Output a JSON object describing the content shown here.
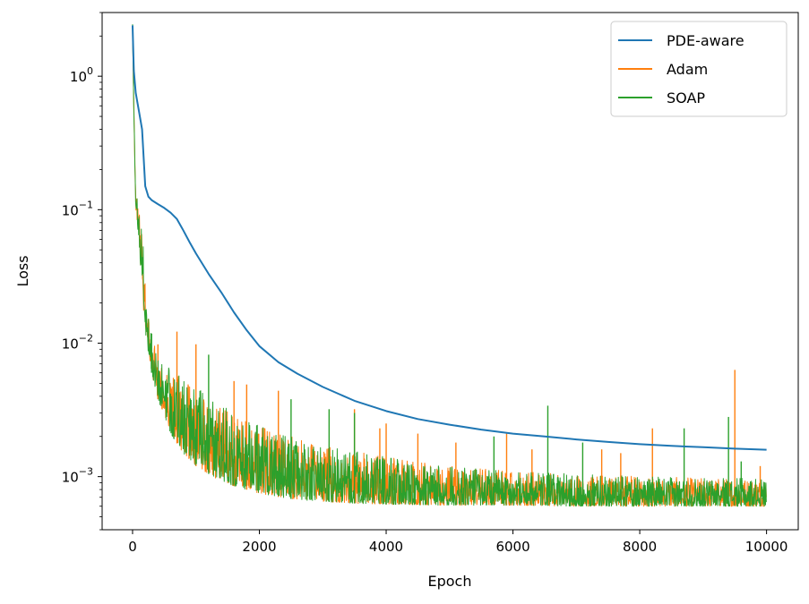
{
  "chart_data": {
    "type": "line",
    "title": "",
    "xlabel": "Epoch",
    "ylabel": "Loss",
    "xlim": [
      -480,
      10500
    ],
    "ylim": [
      0.0004,
      3.0
    ],
    "yscale": "log",
    "grid": false,
    "legend_position": "top-right",
    "x_ticks": [
      0,
      2000,
      4000,
      6000,
      8000,
      10000
    ],
    "x_tick_labels": [
      "0",
      "2000",
      "4000",
      "6000",
      "8000",
      "10000"
    ],
    "y_ticks": [
      0.001,
      0.01,
      0.1,
      1
    ],
    "y_tick_labels": [
      {
        "base": "10",
        "exp": "−3"
      },
      {
        "base": "10",
        "exp": "−2"
      },
      {
        "base": "10",
        "exp": "−1"
      },
      {
        "base": "10",
        "exp": "0"
      }
    ],
    "series": [
      {
        "name": "PDE-aware",
        "color": "#1f77b4",
        "x": [
          0,
          20,
          50,
          100,
          150,
          200,
          250,
          300,
          400,
          500,
          600,
          700,
          800,
          900,
          1000,
          1200,
          1400,
          1600,
          1800,
          2000,
          2300,
          2600,
          3000,
          3500,
          4000,
          4500,
          5000,
          5500,
          6000,
          6500,
          7000,
          7500,
          8000,
          8500,
          9000,
          9500,
          10000
        ],
        "y": [
          2.4,
          1.1,
          0.75,
          0.55,
          0.4,
          0.15,
          0.125,
          0.118,
          0.11,
          0.103,
          0.095,
          0.085,
          0.07,
          0.057,
          0.047,
          0.033,
          0.024,
          0.017,
          0.0125,
          0.0095,
          0.0072,
          0.0059,
          0.0047,
          0.0037,
          0.0031,
          0.0027,
          0.00245,
          0.00225,
          0.0021,
          0.002,
          0.0019,
          0.00182,
          0.00175,
          0.0017,
          0.00166,
          0.00162,
          0.00159
        ]
      },
      {
        "name": "Adam",
        "color": "#ff7f0e",
        "x": [
          0,
          20,
          50,
          100,
          150,
          200,
          300,
          400,
          600,
          800,
          1000,
          1300,
          1600,
          2000,
          2500,
          3000,
          3500,
          4000,
          5000,
          6000,
          7000,
          8000,
          9000,
          10000
        ],
        "upper": [
          2.3,
          0.6,
          0.13,
          0.11,
          0.07,
          0.035,
          0.011,
          0.0085,
          0.0065,
          0.0055,
          0.0047,
          0.0037,
          0.003,
          0.0024,
          0.002,
          0.0017,
          0.00155,
          0.0014,
          0.0012,
          0.0011,
          0.00105,
          0.001,
          0.00098,
          0.00097
        ],
        "lower": [
          2.3,
          0.5,
          0.1,
          0.06,
          0.025,
          0.012,
          0.006,
          0.0038,
          0.0021,
          0.0015,
          0.0012,
          0.00098,
          0.00085,
          0.00075,
          0.00068,
          0.00065,
          0.00063,
          0.00062,
          0.00061,
          0.00061,
          0.0006,
          0.0006,
          0.0006,
          0.0006
        ],
        "spikes": [
          [
            400,
            0.0098
          ],
          [
            700,
            0.0122
          ],
          [
            1000,
            0.0098
          ],
          [
            1600,
            0.0052
          ],
          [
            1800,
            0.0049
          ],
          [
            2300,
            0.0044
          ],
          [
            3500,
            0.0032
          ],
          [
            3900,
            0.0023
          ],
          [
            4000,
            0.0025
          ],
          [
            4500,
            0.0021
          ],
          [
            5100,
            0.0018
          ],
          [
            5900,
            0.0021
          ],
          [
            6300,
            0.0016
          ],
          [
            7400,
            0.0016
          ],
          [
            7700,
            0.0015
          ],
          [
            8200,
            0.0023
          ],
          [
            9500,
            0.0063
          ],
          [
            9900,
            0.0012
          ]
        ]
      },
      {
        "name": "SOAP",
        "color": "#2ca02c",
        "x": [
          0,
          20,
          50,
          100,
          150,
          200,
          300,
          400,
          600,
          800,
          1000,
          1300,
          1600,
          2000,
          2500,
          3000,
          3500,
          4000,
          5000,
          6000,
          7000,
          8000,
          9000,
          10000
        ],
        "upper": [
          2.45,
          0.6,
          0.13,
          0.11,
          0.07,
          0.035,
          0.011,
          0.0085,
          0.0065,
          0.0055,
          0.0047,
          0.0037,
          0.003,
          0.0024,
          0.002,
          0.0017,
          0.00155,
          0.0014,
          0.0012,
          0.0011,
          0.00105,
          0.001,
          0.00098,
          0.00097
        ],
        "lower": [
          2.45,
          0.5,
          0.1,
          0.06,
          0.025,
          0.012,
          0.006,
          0.0038,
          0.0021,
          0.0015,
          0.0012,
          0.00098,
          0.00085,
          0.00075,
          0.00068,
          0.00065,
          0.00063,
          0.00062,
          0.00061,
          0.00061,
          0.0006,
          0.0006,
          0.0006,
          0.0006
        ],
        "spikes": [
          [
            300,
            0.0118
          ],
          [
            1200,
            0.0082
          ],
          [
            2500,
            0.0038
          ],
          [
            3100,
            0.0032
          ],
          [
            3500,
            0.003
          ],
          [
            5700,
            0.002
          ],
          [
            6550,
            0.0034
          ],
          [
            7100,
            0.0018
          ],
          [
            8700,
            0.0023
          ],
          [
            9400,
            0.0028
          ],
          [
            9600,
            0.0013
          ]
        ]
      }
    ]
  }
}
